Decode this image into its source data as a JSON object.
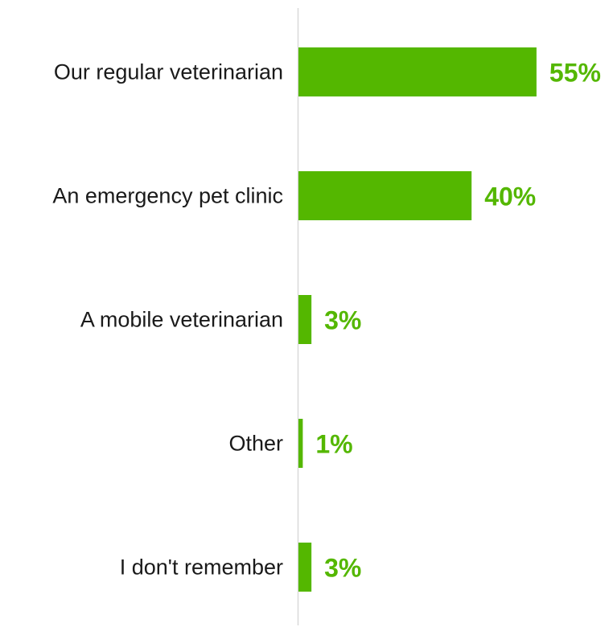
{
  "chart_data": {
    "type": "bar",
    "orientation": "horizontal",
    "title": "",
    "xlabel": "",
    "ylabel": "",
    "categories": [
      "Our regular veterinarian",
      "An emergency pet clinic",
      "A mobile veterinarian",
      "Other",
      "I don't remember"
    ],
    "values": [
      55,
      40,
      3,
      1,
      3
    ],
    "value_labels": [
      "55%",
      "40%",
      "3%",
      "1%",
      "3%"
    ],
    "unit": "%",
    "xlim": [
      0,
      70
    ],
    "grid": false,
    "legend": "none",
    "bar_color": "#54b700",
    "label_color": "#54b700",
    "axis_color": "#d9d9d9"
  }
}
